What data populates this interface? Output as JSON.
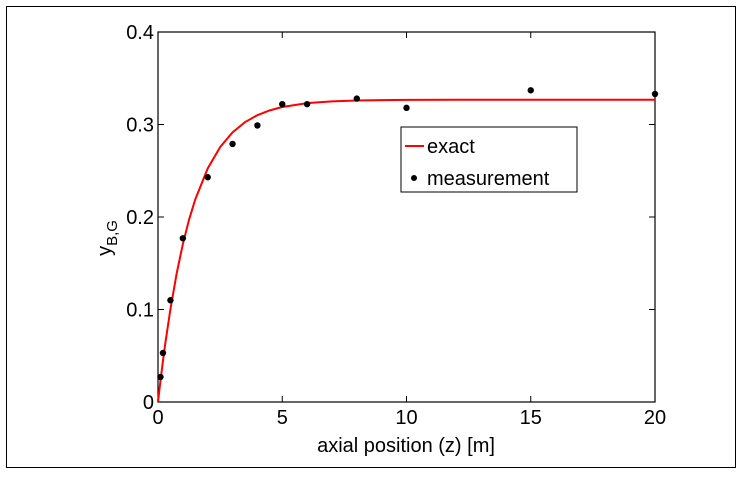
{
  "chart_data": {
    "type": "line",
    "title": "",
    "xlabel": "axial position (z) [m]",
    "ylabel_main": "y",
    "ylabel_sub": "B,G",
    "xlim": [
      0,
      20
    ],
    "ylim": [
      0,
      0.4
    ],
    "xticks": [
      0,
      5,
      10,
      15,
      20
    ],
    "yticks": [
      0,
      0.1,
      0.2,
      0.3,
      0.4
    ],
    "xtick_labels": [
      "0",
      "5",
      "10",
      "15",
      "20"
    ],
    "ytick_labels": [
      "0",
      "0.1",
      "0.2",
      "0.3",
      "0.4"
    ],
    "grid": false,
    "legend_position": "center-right",
    "series": [
      {
        "name": "exact",
        "kind": "line",
        "color": "#ff0000",
        "x": [
          0,
          0.1,
          0.2,
          0.3,
          0.5,
          0.75,
          1,
          1.25,
          1.5,
          2,
          2.5,
          3,
          3.5,
          4,
          4.5,
          5,
          6,
          7,
          8,
          10,
          12,
          15,
          20
        ],
        "y": [
          0,
          0.0231,
          0.0446,
          0.0646,
          0.1004,
          0.1388,
          0.1707,
          0.1971,
          0.2191,
          0.2525,
          0.2756,
          0.2915,
          0.3025,
          0.3101,
          0.3153,
          0.3189,
          0.3231,
          0.325,
          0.326,
          0.3266,
          0.3267,
          0.3267,
          0.3267
        ]
      },
      {
        "name": "measurement",
        "kind": "scatter",
        "color": "#000000",
        "x": [
          0.1,
          0.2,
          0.5,
          1,
          2,
          3,
          4,
          5,
          6,
          8,
          10,
          15,
          20
        ],
        "y": [
          0.027,
          0.053,
          0.11,
          0.177,
          0.243,
          0.279,
          0.299,
          0.322,
          0.322,
          0.328,
          0.318,
          0.337,
          0.333
        ]
      }
    ]
  }
}
